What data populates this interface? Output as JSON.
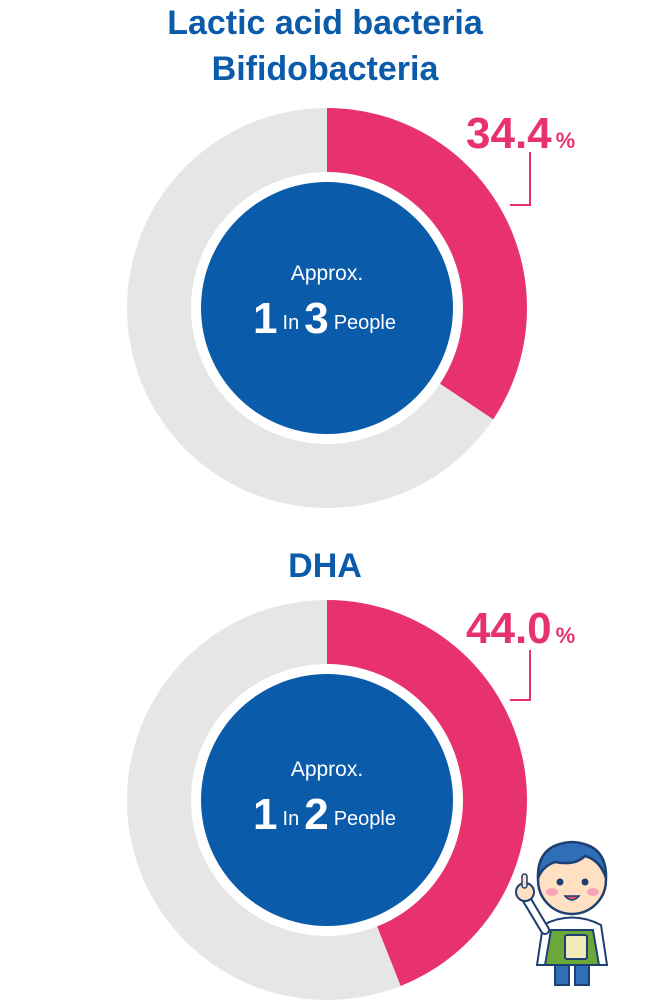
{
  "chart_data": [
    {
      "type": "pie",
      "title_lines": [
        "Lactic acid bacteria",
        "Bifidobacteria"
      ],
      "slices": [
        {
          "value": 34.4,
          "color": "#e8326f"
        },
        {
          "value": 65.6,
          "color": "#e6e6e6"
        }
      ],
      "value_label": "34.4",
      "unit": "%",
      "center": {
        "approx": "Approx.",
        "num1": "1",
        "word": "In",
        "num2": "3",
        "people": "People"
      }
    },
    {
      "type": "pie",
      "title_lines": [
        "DHA"
      ],
      "slices": [
        {
          "value": 44.0,
          "color": "#e8326f"
        },
        {
          "value": 56.0,
          "color": "#e6e6e6"
        }
      ],
      "value_label": "44.0",
      "unit": "%",
      "center": {
        "approx": "Approx.",
        "num1": "1",
        "word": "In",
        "num2": "2",
        "people": "People"
      }
    }
  ],
  "colors": {
    "title": "#0b5bab",
    "highlight": "#e8326f",
    "remainder": "#e6e6e6",
    "center_fill": "#0b5bab"
  },
  "mascot": {
    "icon": "boy-mascot-pointing-icon"
  }
}
